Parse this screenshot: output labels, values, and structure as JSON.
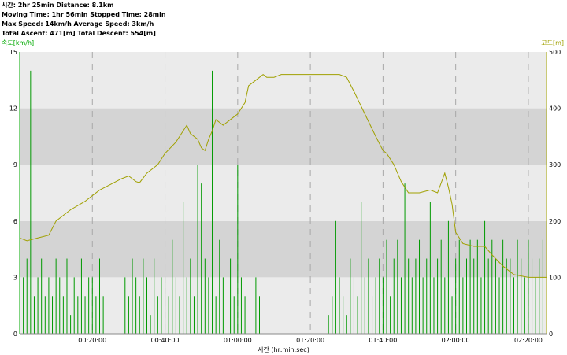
{
  "header": {
    "line1": "시간: 2hr 25min   Distance: 8.1km",
    "line2": "Moving Time: 1hr 56min   Stopped Time: 28min",
    "line3": "Max Speed: 14km/h   Average Speed: 3km/h",
    "line4": "Total Ascent: 471[m]   Total Descent: 554[m]"
  },
  "colors": {
    "speed": "#009900",
    "altitude": "#a0a000",
    "band_dark": "#d4d4d4",
    "band_light": "#ebebeb",
    "vgrid": "#a8a8a8",
    "left_axis": "#00aa00",
    "right_axis": "#a8a800"
  },
  "chart_data": {
    "type": "line",
    "xlabel": "시간 (hr:min:sec)",
    "ylabel_left": "속도[km/h]",
    "ylabel_right": "고도[m]",
    "xlim_minutes": [
      0,
      145
    ],
    "ylim_left": [
      0,
      15
    ],
    "ylim_right": [
      0,
      500
    ],
    "yticks_left": [
      "0",
      "3",
      "6",
      "9",
      "12",
      "15"
    ],
    "yticks_right": [
      "0",
      "100",
      "200",
      "300",
      "400",
      "500"
    ],
    "xticks": [
      {
        "minute": 20,
        "label": "00:20:00"
      },
      {
        "minute": 40,
        "label": "00:40:00"
      },
      {
        "minute": 60,
        "label": "01:00:00"
      },
      {
        "minute": 80,
        "label": "01:20:00"
      },
      {
        "minute": 100,
        "label": "01:40:00"
      },
      {
        "minute": 120,
        "label": "02:00:00"
      },
      {
        "minute": 140,
        "label": "02:20:00"
      }
    ],
    "grid": true,
    "series": [
      {
        "axis": "right",
        "x": [
          0,
          2,
          5,
          8,
          10,
          12,
          14,
          18,
          22,
          25,
          28,
          30,
          32,
          33,
          35,
          38,
          40,
          43,
          45,
          46,
          47,
          48,
          49,
          50,
          51,
          52,
          53,
          54,
          55,
          56,
          57,
          58,
          60,
          62,
          63,
          65,
          67,
          68,
          69,
          70,
          72,
          75,
          80,
          85,
          88,
          90,
          92,
          95,
          98,
          100,
          101,
          103,
          105,
          107,
          110,
          113,
          115,
          117,
          118,
          119,
          120,
          122,
          125,
          128,
          130,
          133,
          136,
          140,
          143,
          145
        ],
        "y": [
          170,
          165,
          170,
          175,
          200,
          210,
          220,
          235,
          255,
          265,
          275,
          280,
          270,
          268,
          285,
          300,
          320,
          340,
          360,
          370,
          355,
          350,
          345,
          330,
          325,
          345,
          360,
          380,
          375,
          370,
          375,
          380,
          390,
          410,
          440,
          450,
          460,
          455,
          455,
          455,
          460,
          460,
          460,
          460,
          460,
          455,
          430,
          390,
          350,
          325,
          320,
          300,
          270,
          250,
          250,
          255,
          250,
          285,
          260,
          230,
          180,
          160,
          155,
          155,
          140,
          120,
          105,
          100,
          100,
          100
        ]
      },
      {
        "axis": "left",
        "x": [
          0,
          1,
          2,
          3,
          4,
          5,
          6,
          7,
          8,
          9,
          10,
          11,
          12,
          13,
          14,
          15,
          16,
          17,
          18,
          19,
          20,
          21,
          22,
          23,
          24,
          25,
          26,
          27,
          28,
          29,
          30,
          31,
          32,
          33,
          34,
          35,
          36,
          37,
          38,
          39,
          40,
          41,
          42,
          43,
          44,
          45,
          46,
          47,
          48,
          49,
          50,
          51,
          52,
          53,
          54,
          55,
          56,
          57,
          58,
          59,
          60,
          61,
          62,
          63,
          64,
          65,
          66,
          67,
          68,
          69,
          70,
          71,
          72,
          73,
          74,
          75,
          76,
          77,
          78,
          79,
          80,
          81,
          82,
          83,
          84,
          85,
          86,
          87,
          88,
          89,
          90,
          91,
          92,
          93,
          94,
          95,
          96,
          97,
          98,
          99,
          100,
          101,
          102,
          103,
          104,
          105,
          106,
          107,
          108,
          109,
          110,
          111,
          112,
          113,
          114,
          115,
          116,
          117,
          118,
          119,
          120,
          121,
          122,
          123,
          124,
          125,
          126,
          127,
          128,
          129,
          130,
          131,
          132,
          133,
          134,
          135,
          136,
          137,
          138,
          139,
          140,
          141,
          142,
          143,
          144,
          145
        ],
        "y": [
          2,
          3,
          4,
          14,
          2,
          3,
          4,
          2,
          3,
          2,
          4,
          3,
          2,
          4,
          1,
          3,
          2,
          4,
          2,
          3,
          3,
          2,
          4,
          2,
          0,
          0,
          0,
          0,
          0,
          3,
          2,
          4,
          3,
          2,
          4,
          3,
          1,
          4,
          2,
          3,
          3,
          2,
          5,
          3,
          2,
          7,
          3,
          4,
          2,
          9,
          8,
          4,
          3,
          14,
          2,
          5,
          3,
          0,
          4,
          2,
          9,
          3,
          2,
          0,
          0,
          3,
          2,
          0,
          0,
          0,
          0,
          0,
          0,
          0,
          0,
          0,
          0,
          0,
          0,
          0,
          0,
          0,
          0,
          0,
          0,
          1,
          2,
          6,
          3,
          2,
          1,
          4,
          3,
          2,
          7,
          3,
          4,
          2,
          3,
          4,
          3,
          5,
          2,
          4,
          5,
          3,
          8,
          4,
          3,
          4,
          5,
          3,
          4,
          7,
          3,
          4,
          5,
          3,
          6,
          2,
          4,
          5,
          3,
          4,
          5,
          4,
          5,
          3,
          6,
          4,
          5,
          4,
          3,
          5,
          4,
          4,
          3,
          5,
          4,
          3,
          5,
          4,
          3,
          4,
          5,
          4
        ]
      }
    ]
  }
}
